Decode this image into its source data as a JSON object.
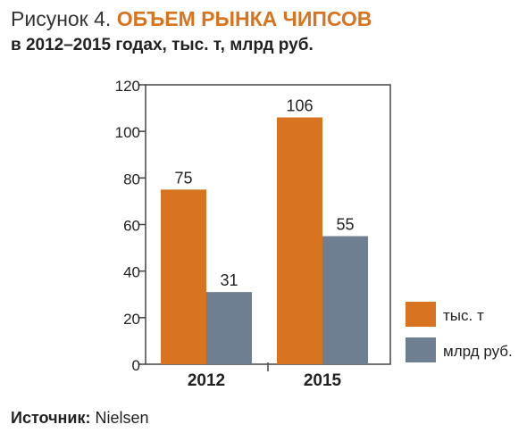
{
  "figure": {
    "label": "Рисунок 4.",
    "title": "ОБЪЕМ РЫНКА ЧИПСОВ",
    "subtitle": "в 2012–2015 годах, тыс. т, млрд руб."
  },
  "source": {
    "label": "Источник:",
    "value": "Nielsen"
  },
  "colors": {
    "series_1": "#d8731f",
    "series_2": "#6f7f92",
    "title_accent": "#d8731f"
  },
  "chart_data": {
    "type": "bar",
    "categories": [
      "2012",
      "2015"
    ],
    "series": [
      {
        "name": "тыс. т",
        "values": [
          75,
          106
        ]
      },
      {
        "name": "млрд руб.",
        "values": [
          31,
          55
        ]
      }
    ],
    "ylim": [
      0,
      120
    ],
    "yticks": [
      0,
      20,
      40,
      60,
      80,
      100,
      120
    ],
    "grid": false,
    "legend": "bottom-right"
  }
}
